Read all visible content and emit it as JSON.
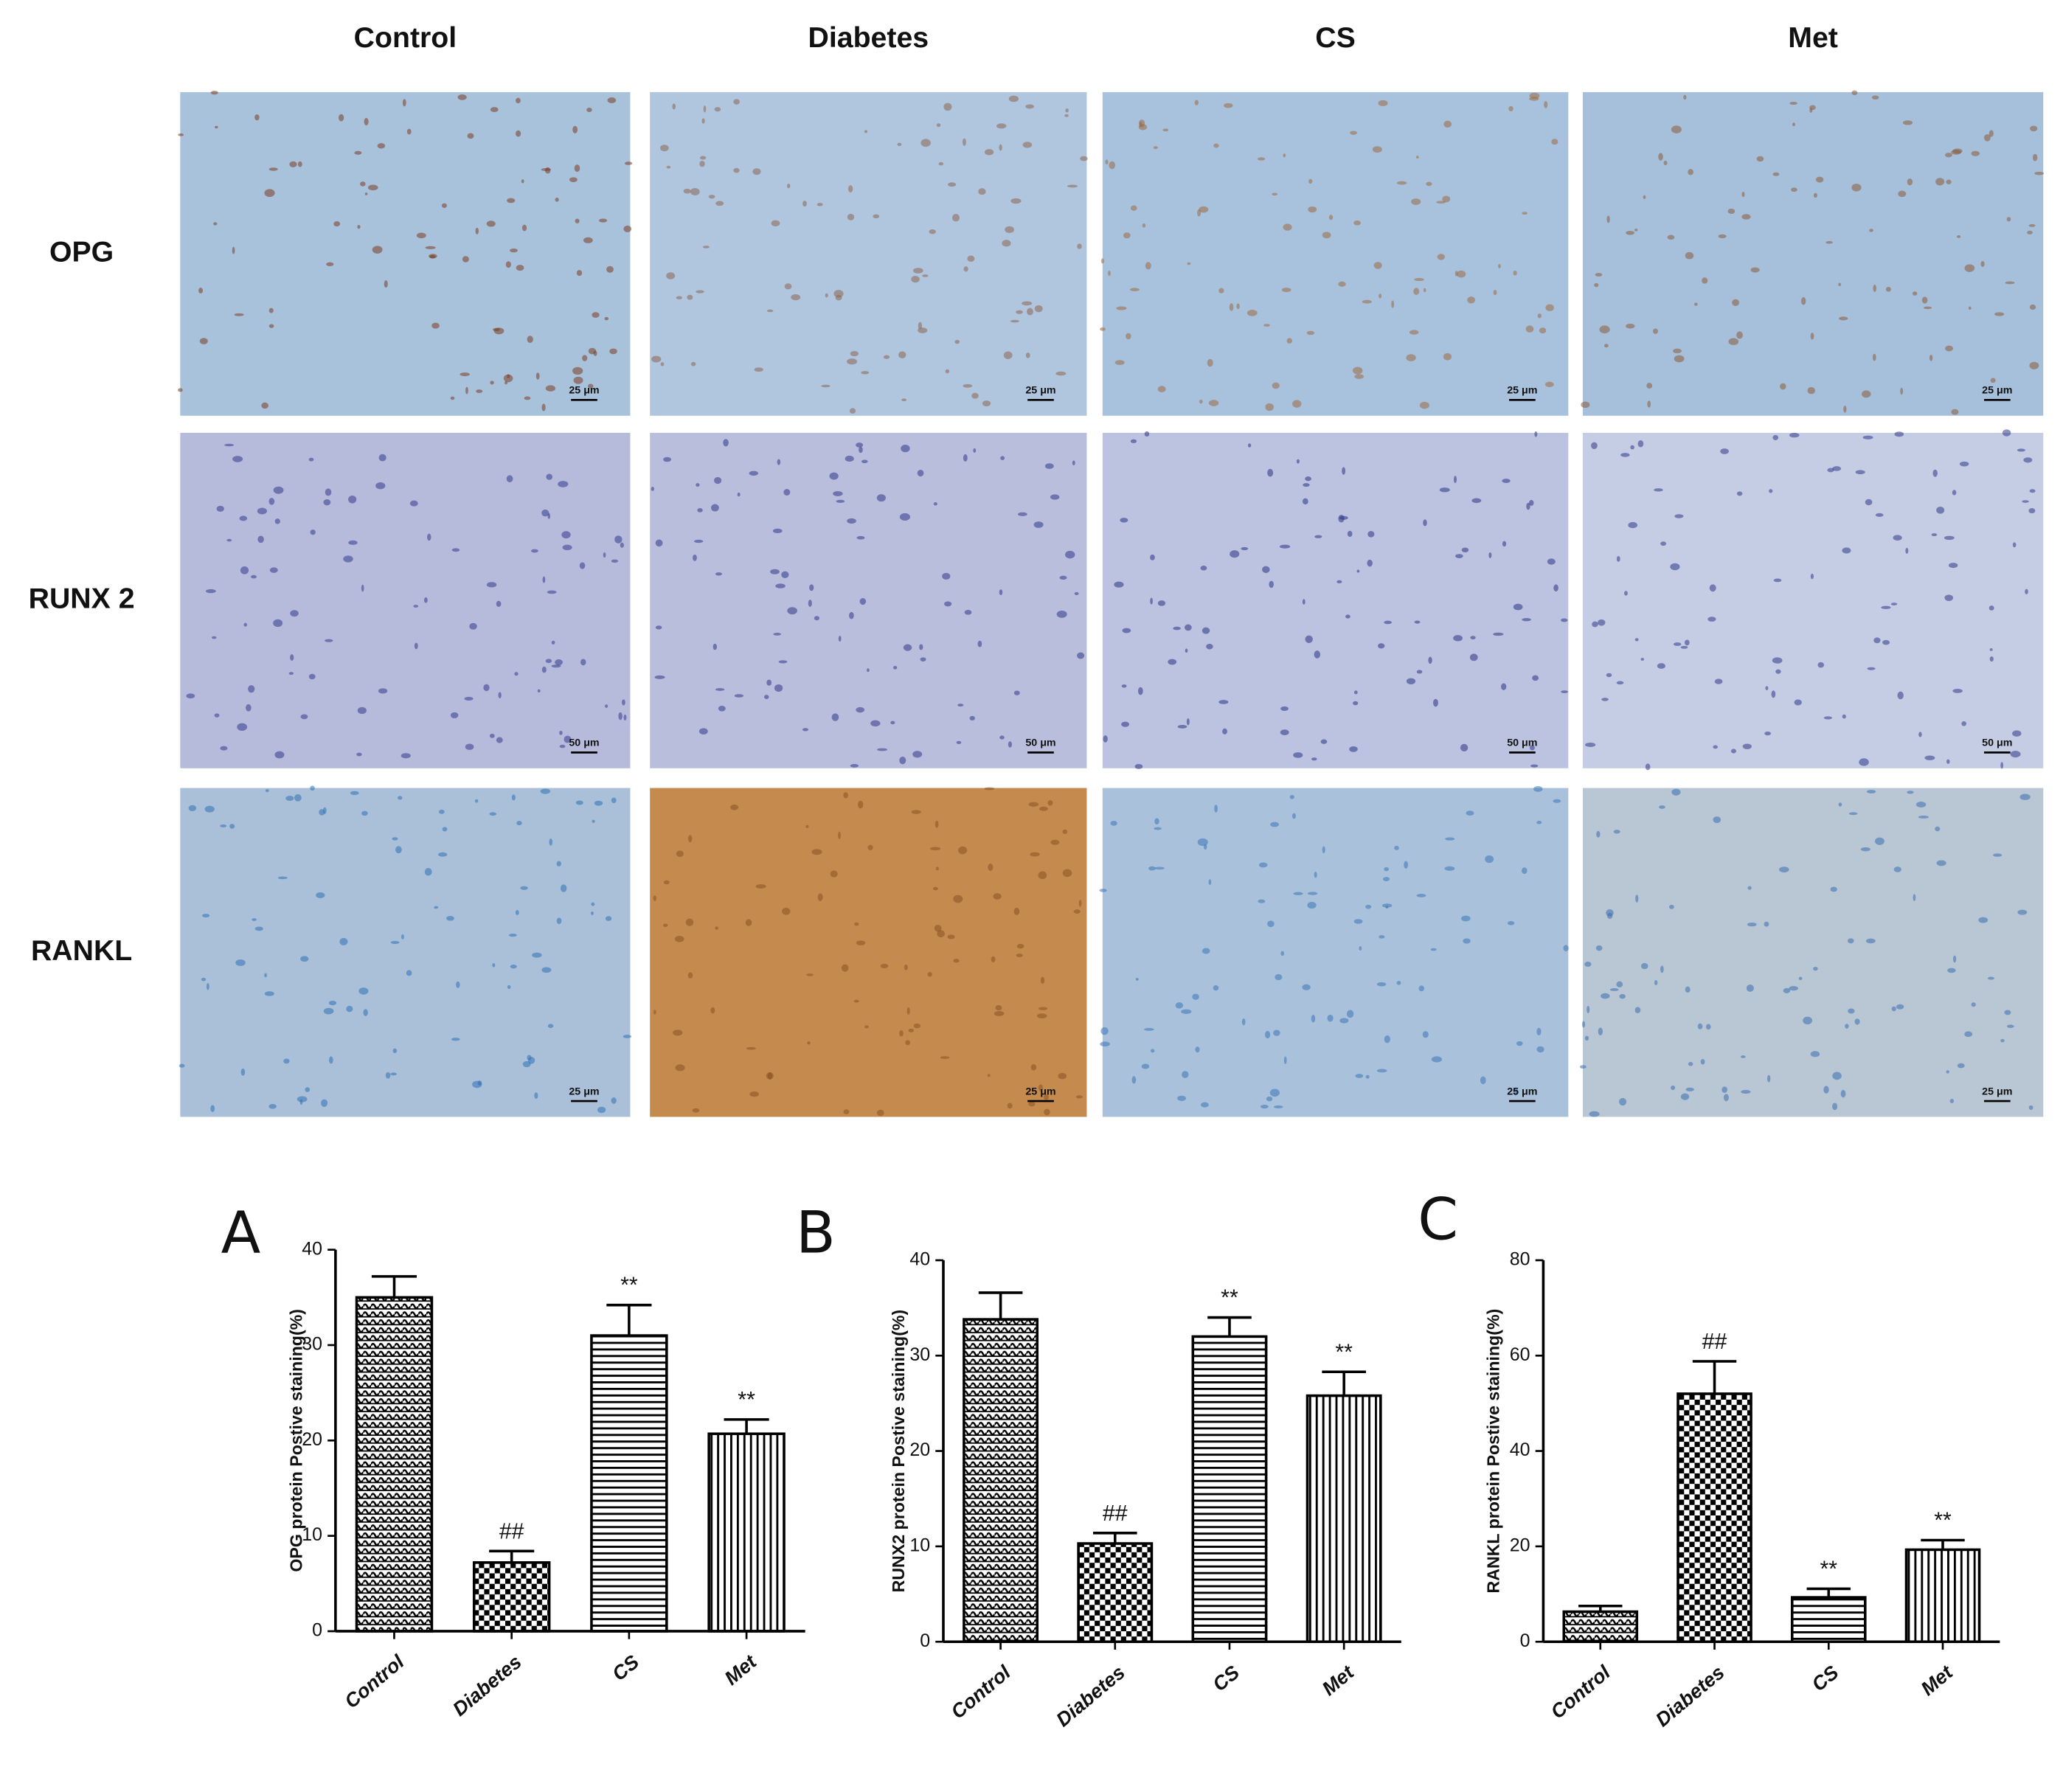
{
  "image_grid": {
    "columns": [
      "Control",
      "Diabetes",
      "CS",
      "Met"
    ],
    "rows": [
      {
        "label": "OPG",
        "scale_bar": "25 μm"
      },
      {
        "label": "RUNX 2",
        "scale_bar": "50 μm"
      },
      {
        "label": "RANKL",
        "scale_bar": "25 μm"
      }
    ]
  },
  "chart_data": [
    {
      "type": "bar",
      "panel": "A",
      "ylabel": "OPG protein Postive staining(%)",
      "categories": [
        "Control",
        "Diabetes",
        "CS",
        "Met"
      ],
      "values": [
        35,
        7.2,
        31,
        20.7
      ],
      "errors": [
        2.2,
        1.2,
        3.2,
        1.5
      ],
      "annotations": [
        null,
        "##",
        "**",
        "**"
      ],
      "patterns": [
        "weave",
        "checker",
        "horizontal",
        "vertical"
      ],
      "color": "#000000",
      "ylim": [
        0,
        40
      ],
      "yticks": [
        0,
        10,
        20,
        30,
        40
      ]
    },
    {
      "type": "bar",
      "panel": "B",
      "ylabel": "RUNX2 protein Postive staining(%)",
      "categories": [
        "Control",
        "Diabetes",
        "CS",
        "Met"
      ],
      "values": [
        33.8,
        10.3,
        32,
        25.8
      ],
      "errors": [
        2.8,
        1.1,
        2,
        2.5
      ],
      "annotations": [
        null,
        "##",
        "**",
        "**"
      ],
      "patterns": [
        "weave",
        "checker",
        "horizontal",
        "vertical"
      ],
      "color": "#000000",
      "ylim": [
        0,
        40
      ],
      "yticks": [
        0,
        10,
        20,
        30,
        40
      ]
    },
    {
      "type": "bar",
      "panel": "C",
      "ylabel": "RANKL protein Postive staining(%)",
      "categories": [
        "Control",
        "Diabetes",
        "CS",
        "Met"
      ],
      "values": [
        6.3,
        52,
        9.3,
        19.3
      ],
      "errors": [
        1.2,
        6.8,
        1.8,
        2
      ],
      "annotations": [
        null,
        "##",
        "**",
        "**"
      ],
      "patterns": [
        "weave",
        "checker",
        "horizontal",
        "vertical"
      ],
      "color": "#000000",
      "ylim": [
        0,
        80
      ],
      "yticks": [
        0,
        20,
        40,
        60,
        80
      ]
    }
  ]
}
